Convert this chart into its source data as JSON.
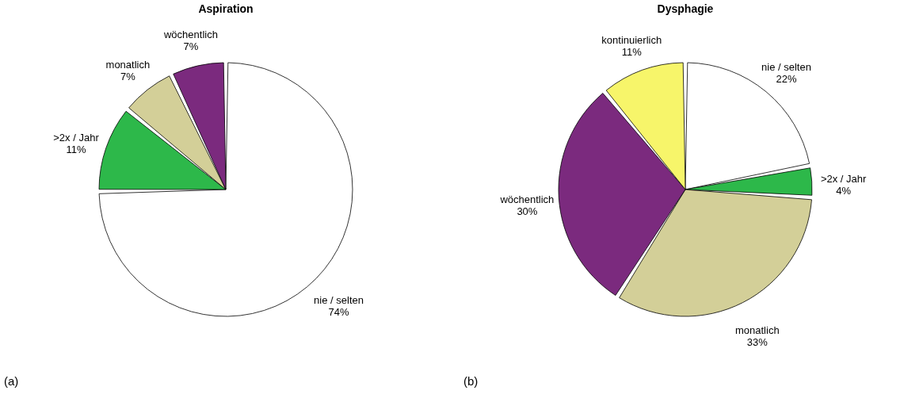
{
  "chart_data": [
    {
      "type": "pie",
      "title": "Aspiration",
      "categories": [
        "nie / selten",
        ">2x / Jahr",
        "monatlich",
        "wöchentlich"
      ],
      "values": [
        74,
        11,
        7,
        7
      ],
      "value_labels": [
        "74%",
        "11%",
        "7%",
        "7%"
      ],
      "colors": [
        "#ffffff",
        "#2db84a",
        "#d3cf98",
        "#7b2a7e"
      ],
      "annotations": [
        "(a)"
      ]
    },
    {
      "type": "pie",
      "title": "Dysphagie",
      "categories": [
        "nie / selten",
        ">2x / Jahr",
        "monatlich",
        "wöchentlich",
        "kontinuierlich"
      ],
      "values": [
        22,
        4,
        33,
        30,
        11
      ],
      "value_labels": [
        "22%",
        "4%",
        "33%",
        "30%",
        "11%"
      ],
      "colors": [
        "#ffffff",
        "#2db84a",
        "#d3cf98",
        "#7b2a7e",
        "#f7f56a"
      ],
      "annotations": [
        "(b)"
      ]
    }
  ]
}
